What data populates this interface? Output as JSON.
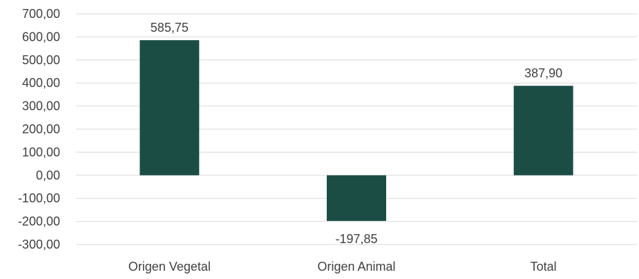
{
  "chart_data": {
    "type": "bar",
    "categories": [
      "Origen Vegetal",
      "Origen Animal",
      "Total"
    ],
    "values": [
      585.75,
      -197.85,
      387.9
    ],
    "data_labels": [
      "585,75",
      "-197,85",
      "387,90"
    ],
    "y_ticks": [
      700,
      600,
      500,
      400,
      300,
      200,
      100,
      0,
      -100,
      -200,
      -300
    ],
    "y_tick_labels": [
      "700,00",
      "600,00",
      "500,00",
      "400,00",
      "300,00",
      "200,00",
      "100,00",
      "0,00",
      "-100,00",
      "-200,00",
      "-300,00"
    ],
    "ylim": [
      -300,
      700
    ],
    "grid": true,
    "legend": "none",
    "bar_color": "#1b4d45",
    "grid_color": "#d9d9d9",
    "text_color": "#404040"
  }
}
